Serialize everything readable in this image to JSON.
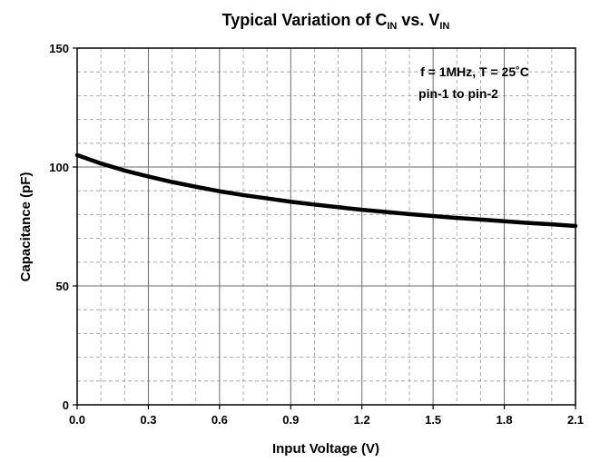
{
  "chart_data": {
    "type": "line",
    "title": {
      "prefix": "Typical Variation of C",
      "sub1": "IN",
      "middle": " vs. V",
      "sub2": "IN"
    },
    "xlabel": "Input Voltage (V)",
    "ylabel": "Capacitance (pF)",
    "xlim": [
      0,
      2.1
    ],
    "ylim": [
      0,
      150
    ],
    "xticks": [
      "0.0",
      "0.3",
      "0.6",
      "0.9",
      "1.2",
      "1.5",
      "1.8",
      "2.1"
    ],
    "yticks": [
      "0",
      "50",
      "100",
      "150"
    ],
    "grid": true,
    "annotations": [
      "f = 1MHz, T = 25˚C",
      "pin-1 to pin-2"
    ],
    "series": [
      {
        "x": [
          0.0,
          0.1,
          0.2,
          0.3,
          0.4,
          0.5,
          0.6,
          0.7,
          0.8,
          0.9,
          1.0,
          1.1,
          1.2,
          1.3,
          1.4,
          1.5,
          1.6,
          1.7,
          1.8,
          1.9,
          2.0,
          2.1
        ],
        "values": [
          105,
          101.5,
          98.5,
          96,
          93.7,
          91.7,
          89.8,
          88.2,
          86.8,
          85.4,
          84.2,
          83.1,
          82.0,
          81.1,
          80.2,
          79.4,
          78.6,
          77.9,
          77.2,
          76.5,
          75.9,
          75.2
        ]
      }
    ]
  }
}
